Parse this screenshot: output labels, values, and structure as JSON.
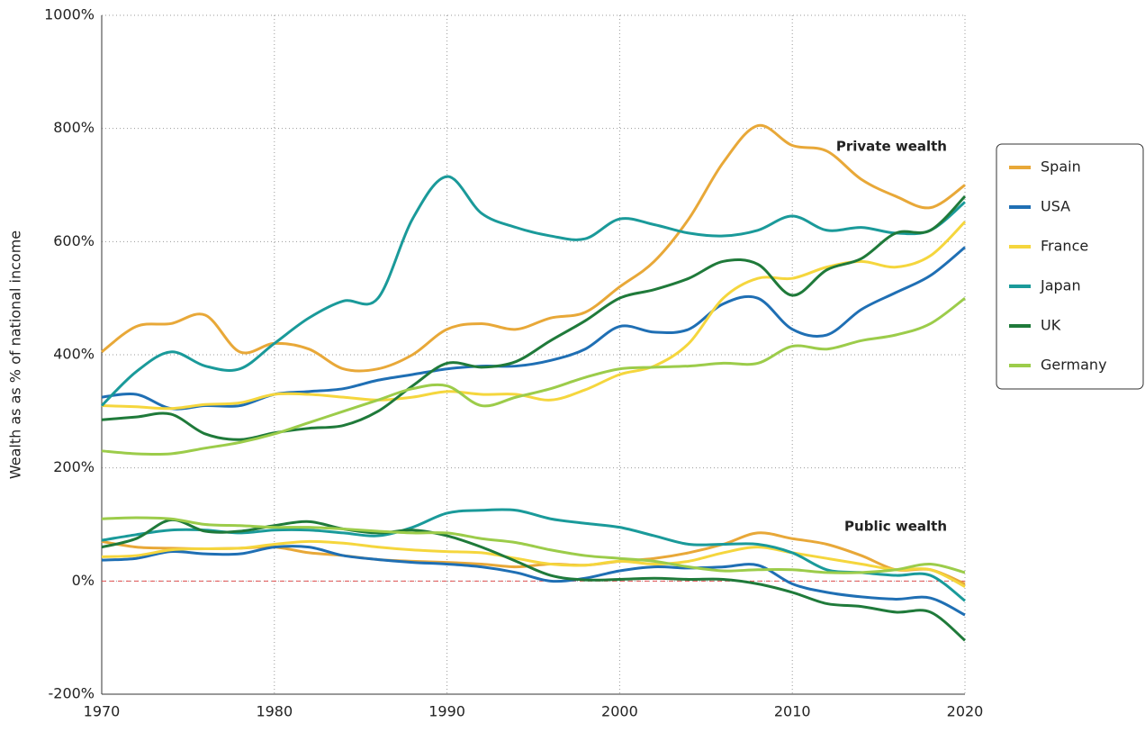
{
  "chart_data": {
    "type": "line",
    "y_label": "Wealth as as % of national income",
    "annotations": [
      "Private wealth",
      "Public wealth"
    ],
    "x": [
      1970,
      1972,
      1974,
      1976,
      1978,
      1980,
      1982,
      1984,
      1986,
      1988,
      1990,
      1992,
      1994,
      1996,
      1998,
      2000,
      2002,
      2004,
      2006,
      2008,
      2010,
      2012,
      2014,
      2016,
      2018,
      2020
    ],
    "xlim": [
      1970,
      2020
    ],
    "xticks": [
      1970,
      1980,
      1990,
      2000,
      2010,
      2020
    ],
    "ylim": [
      -200,
      1000
    ],
    "yticks": [
      {
        "value": -200,
        "label": "-200%"
      },
      {
        "value": 0,
        "label": "0%"
      },
      {
        "value": 200,
        "label": "200%"
      },
      {
        "value": 400,
        "label": "400%"
      },
      {
        "value": 600,
        "label": "600%"
      },
      {
        "value": 800,
        "label": "800%"
      },
      {
        "value": 1000,
        "label": "1000%"
      }
    ],
    "grid": true,
    "zero_line": true,
    "legend": "right",
    "series": [
      {
        "name": "Spain",
        "color": "#e8a838",
        "values": [
          405,
          450,
          455,
          470,
          405,
          420,
          410,
          375,
          375,
          400,
          445,
          455,
          445,
          465,
          475,
          520,
          565,
          640,
          740,
          805,
          770,
          760,
          710,
          680,
          660,
          700
        ],
        "public_values": [
          70,
          60,
          58,
          57,
          58,
          60,
          50,
          45,
          38,
          35,
          33,
          30,
          25,
          30,
          28,
          35,
          40,
          50,
          65,
          85,
          75,
          65,
          45,
          20,
          20,
          -5
        ]
      },
      {
        "name": "USA",
        "color": "#1f6fb4",
        "values": [
          325,
          330,
          305,
          310,
          310,
          330,
          335,
          340,
          355,
          365,
          375,
          380,
          380,
          390,
          410,
          450,
          440,
          445,
          490,
          500,
          445,
          435,
          480,
          510,
          540,
          590
        ],
        "public_values": [
          37,
          40,
          52,
          48,
          48,
          60,
          60,
          45,
          38,
          33,
          30,
          25,
          15,
          0,
          5,
          18,
          25,
          23,
          25,
          28,
          -5,
          -20,
          -28,
          -32,
          -30,
          -60
        ]
      },
      {
        "name": "France",
        "color": "#f5d63d",
        "values": [
          310,
          308,
          305,
          312,
          315,
          330,
          330,
          325,
          320,
          325,
          335,
          330,
          330,
          320,
          338,
          365,
          380,
          420,
          500,
          535,
          535,
          555,
          565,
          555,
          575,
          635
        ],
        "public_values": [
          43,
          45,
          55,
          57,
          58,
          65,
          70,
          67,
          60,
          55,
          52,
          50,
          40,
          30,
          28,
          35,
          30,
          35,
          50,
          60,
          50,
          40,
          30,
          20,
          20,
          -10
        ]
      },
      {
        "name": "Japan",
        "color": "#1a9a9a",
        "values": [
          310,
          370,
          405,
          380,
          375,
          420,
          465,
          495,
          500,
          640,
          715,
          650,
          625,
          610,
          605,
          640,
          630,
          615,
          610,
          620,
          645,
          620,
          625,
          615,
          620,
          670
        ],
        "public_values": [
          72,
          82,
          90,
          90,
          85,
          90,
          90,
          85,
          80,
          95,
          120,
          125,
          125,
          110,
          102,
          95,
          80,
          65,
          65,
          65,
          50,
          20,
          15,
          10,
          10,
          -35
        ]
      },
      {
        "name": "UK",
        "color": "#1f7a3a",
        "values": [
          285,
          290,
          295,
          260,
          250,
          262,
          270,
          275,
          300,
          345,
          385,
          378,
          388,
          425,
          460,
          500,
          515,
          535,
          565,
          560,
          505,
          550,
          570,
          615,
          620,
          680
        ],
        "public_values": [
          60,
          75,
          108,
          88,
          88,
          98,
          105,
          92,
          85,
          90,
          80,
          60,
          35,
          10,
          2,
          3,
          5,
          3,
          3,
          -5,
          -20,
          -40,
          -45,
          -55,
          -55,
          -105
        ]
      },
      {
        "name": "Germany",
        "color": "#9ccc4a",
        "values": [
          230,
          225,
          225,
          235,
          245,
          260,
          280,
          300,
          320,
          340,
          345,
          310,
          325,
          340,
          360,
          375,
          378,
          380,
          385,
          385,
          415,
          410,
          425,
          435,
          455,
          500
        ],
        "public_values": [
          110,
          112,
          110,
          100,
          98,
          95,
          95,
          92,
          88,
          85,
          85,
          75,
          68,
          55,
          45,
          40,
          35,
          25,
          18,
          20,
          20,
          15,
          15,
          20,
          30,
          15
        ]
      }
    ]
  }
}
